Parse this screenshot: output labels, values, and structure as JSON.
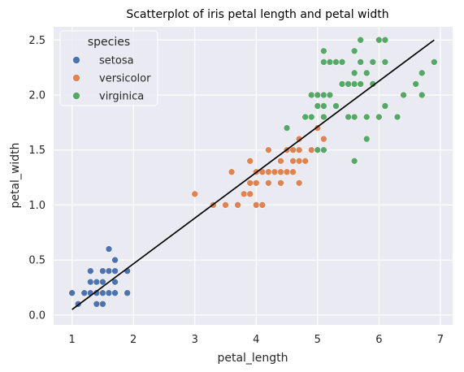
{
  "chart_data": {
    "type": "scatter",
    "title": "Scatterplot of iris petal length and petal width",
    "xlabel": "petal_length",
    "ylabel": "petal_width",
    "xlim": [
      0.7,
      7.2
    ],
    "ylim": [
      -0.09,
      2.62
    ],
    "xticks": [
      1,
      2,
      3,
      4,
      5,
      6,
      7
    ],
    "yticks": [
      0.0,
      0.5,
      1.0,
      1.5,
      2.0,
      2.5
    ],
    "xtick_labels": [
      "1",
      "2",
      "3",
      "4",
      "5",
      "6",
      "7"
    ],
    "ytick_labels": [
      "0.0",
      "0.5",
      "1.0",
      "1.5",
      "2.0",
      "2.5"
    ],
    "grid": true,
    "background": "#eaeaf2",
    "legend": {
      "title": "species",
      "placement": "top-left"
    },
    "series": [
      {
        "name": "setosa",
        "color": "#4c72b0",
        "points": [
          [
            1.0,
            0.2
          ],
          [
            1.1,
            0.1
          ],
          [
            1.2,
            0.2
          ],
          [
            1.3,
            0.2
          ],
          [
            1.3,
            0.3
          ],
          [
            1.3,
            0.4
          ],
          [
            1.4,
            0.1
          ],
          [
            1.4,
            0.2
          ],
          [
            1.4,
            0.3
          ],
          [
            1.5,
            0.1
          ],
          [
            1.5,
            0.2
          ],
          [
            1.5,
            0.3
          ],
          [
            1.5,
            0.4
          ],
          [
            1.6,
            0.2
          ],
          [
            1.6,
            0.4
          ],
          [
            1.6,
            0.6
          ],
          [
            1.7,
            0.2
          ],
          [
            1.7,
            0.3
          ],
          [
            1.7,
            0.4
          ],
          [
            1.7,
            0.5
          ],
          [
            1.9,
            0.2
          ],
          [
            1.9,
            0.4
          ]
        ]
      },
      {
        "name": "versicolor",
        "color": "#dd8452",
        "points": [
          [
            3.0,
            1.1
          ],
          [
            3.3,
            1.0
          ],
          [
            3.5,
            1.0
          ],
          [
            3.6,
            1.3
          ],
          [
            3.7,
            1.0
          ],
          [
            3.8,
            1.1
          ],
          [
            3.9,
            1.1
          ],
          [
            3.9,
            1.2
          ],
          [
            3.9,
            1.4
          ],
          [
            4.0,
            1.0
          ],
          [
            4.0,
            1.2
          ],
          [
            4.0,
            1.3
          ],
          [
            4.1,
            1.0
          ],
          [
            4.1,
            1.3
          ],
          [
            4.2,
            1.2
          ],
          [
            4.2,
            1.3
          ],
          [
            4.2,
            1.5
          ],
          [
            4.3,
            1.3
          ],
          [
            4.4,
            1.2
          ],
          [
            4.4,
            1.3
          ],
          [
            4.4,
            1.4
          ],
          [
            4.5,
            1.3
          ],
          [
            4.5,
            1.5
          ],
          [
            4.6,
            1.3
          ],
          [
            4.6,
            1.4
          ],
          [
            4.6,
            1.5
          ],
          [
            4.7,
            1.2
          ],
          [
            4.7,
            1.4
          ],
          [
            4.7,
            1.5
          ],
          [
            4.7,
            1.6
          ],
          [
            4.8,
            1.4
          ],
          [
            4.8,
            1.8
          ],
          [
            4.9,
            1.5
          ],
          [
            5.0,
            1.7
          ],
          [
            5.1,
            1.6
          ]
        ]
      },
      {
        "name": "virginica",
        "color": "#55a868",
        "points": [
          [
            4.5,
            1.7
          ],
          [
            4.8,
            1.8
          ],
          [
            4.9,
            1.8
          ],
          [
            4.9,
            2.0
          ],
          [
            5.0,
            1.5
          ],
          [
            5.0,
            1.9
          ],
          [
            5.0,
            2.0
          ],
          [
            5.1,
            1.5
          ],
          [
            5.1,
            1.8
          ],
          [
            5.1,
            1.9
          ],
          [
            5.1,
            2.0
          ],
          [
            5.1,
            2.3
          ],
          [
            5.1,
            2.4
          ],
          [
            5.2,
            2.0
          ],
          [
            5.2,
            2.3
          ],
          [
            5.3,
            1.9
          ],
          [
            5.3,
            2.3
          ],
          [
            5.4,
            2.1
          ],
          [
            5.4,
            2.3
          ],
          [
            5.5,
            1.8
          ],
          [
            5.5,
            2.1
          ],
          [
            5.6,
            1.4
          ],
          [
            5.6,
            1.8
          ],
          [
            5.6,
            2.1
          ],
          [
            5.6,
            2.2
          ],
          [
            5.6,
            2.4
          ],
          [
            5.7,
            2.1
          ],
          [
            5.7,
            2.3
          ],
          [
            5.7,
            2.5
          ],
          [
            5.8,
            1.6
          ],
          [
            5.8,
            1.8
          ],
          [
            5.8,
            2.2
          ],
          [
            5.9,
            2.1
          ],
          [
            5.9,
            2.3
          ],
          [
            6.0,
            1.8
          ],
          [
            6.0,
            2.5
          ],
          [
            6.1,
            1.9
          ],
          [
            6.1,
            2.3
          ],
          [
            6.1,
            2.5
          ],
          [
            6.3,
            1.8
          ],
          [
            6.4,
            2.0
          ],
          [
            6.6,
            2.1
          ],
          [
            6.7,
            2.0
          ],
          [
            6.7,
            2.2
          ],
          [
            6.9,
            2.3
          ]
        ]
      }
    ],
    "regression_line": {
      "color": "#000000",
      "points": [
        [
          1.0,
          0.05
        ],
        [
          6.9,
          2.5
        ]
      ]
    }
  }
}
